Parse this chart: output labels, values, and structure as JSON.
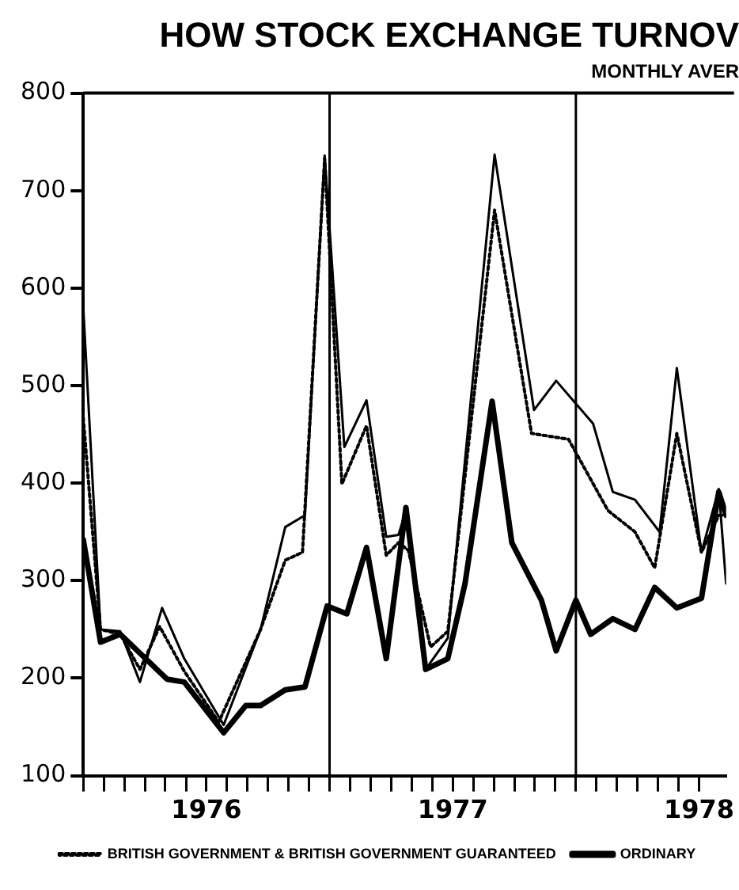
{
  "chart_data": {
    "type": "line",
    "title": "HOW STOCK EXCHANGE TURNOV",
    "subtitle": "MONTHLY AVER",
    "xlim": [
      1976,
      1978.61
    ],
    "ylim": [
      100,
      800
    ],
    "yticks": [
      100,
      200,
      300,
      400,
      500,
      600,
      700,
      800
    ],
    "xticks": [
      {
        "value": 1976,
        "label": null
      },
      {
        "value": 1976.083,
        "label": null
      },
      {
        "value": 1976.167,
        "label": null
      },
      {
        "value": 1976.25,
        "label": null
      },
      {
        "value": 1976.333,
        "label": null
      },
      {
        "value": 1976.417,
        "label": null
      },
      {
        "value": 1976.5,
        "label": "1976"
      },
      {
        "value": 1976.583,
        "label": null
      },
      {
        "value": 1976.667,
        "label": null
      },
      {
        "value": 1976.75,
        "label": null
      },
      {
        "value": 1976.833,
        "label": null
      },
      {
        "value": 1976.917,
        "label": null
      },
      {
        "value": 1977,
        "label": null
      },
      {
        "value": 1977.083,
        "label": null
      },
      {
        "value": 1977.167,
        "label": null
      },
      {
        "value": 1977.25,
        "label": null
      },
      {
        "value": 1977.333,
        "label": null
      },
      {
        "value": 1977.417,
        "label": null
      },
      {
        "value": 1977.5,
        "label": "1977"
      },
      {
        "value": 1977.583,
        "label": null
      },
      {
        "value": 1977.667,
        "label": null
      },
      {
        "value": 1977.75,
        "label": null
      },
      {
        "value": 1977.833,
        "label": null
      },
      {
        "value": 1977.917,
        "label": null
      },
      {
        "value": 1978,
        "label": null
      },
      {
        "value": 1978.083,
        "label": null
      },
      {
        "value": 1978.167,
        "label": null
      },
      {
        "value": 1978.25,
        "label": null
      },
      {
        "value": 1978.333,
        "label": null
      },
      {
        "value": 1978.417,
        "label": null
      },
      {
        "value": 1978.5,
        "label": "1978"
      }
    ],
    "grid": false,
    "legend": "bottom",
    "marker": "none",
    "ref_lines": [
      {
        "axis": "x",
        "value": 1977,
        "color": "#000000"
      },
      {
        "axis": "x",
        "value": 1978,
        "color": "#000000"
      }
    ],
    "series": [
      {
        "color": "#000000",
        "line_style": "solid",
        "x": [
          1976,
          1976.07,
          1976.15,
          1976.23,
          1976.32,
          1976.41,
          1976.57,
          1976.72,
          1976.82,
          1976.9,
          1976.98,
          1977.06,
          1977.15,
          1977.23,
          1977.28,
          1977.31,
          1977.39,
          1977.48,
          1977.67,
          1977.83,
          1977.92,
          1978.07,
          1978.15,
          1978.24,
          1978.34,
          1978.41,
          1978.51,
          1978.58,
          1978.61
        ],
        "values": [
          580,
          250,
          248,
          196,
          272,
          220,
          152,
          250,
          355,
          367,
          736,
          437,
          485,
          345,
          347,
          372,
          209,
          241,
          737,
          475,
          505,
          461,
          391,
          383,
          350,
          518,
          329,
          394,
          297
        ]
      },
      {
        "name": "BRITISH GOVERNMENT & BRITISH GOVERNMENT GUARANTEED",
        "color": "#000000",
        "line_style": "dotted",
        "x": [
          1976,
          1976.07,
          1976.15,
          1976.23,
          1976.31,
          1976.41,
          1976.55,
          1976.72,
          1976.82,
          1976.89,
          1976.98,
          1977.05,
          1977.15,
          1977.23,
          1977.28,
          1977.32,
          1977.41,
          1977.48,
          1977.67,
          1977.82,
          1977.97,
          1978.13,
          1978.24,
          1978.32,
          1978.41,
          1978.51,
          1978.58,
          1978.61
        ],
        "values": [
          467,
          250,
          245,
          209,
          253,
          207,
          155,
          250,
          321,
          329,
          733,
          399,
          459,
          326,
          339,
          331,
          232,
          248,
          680,
          451,
          445,
          372,
          350,
          313,
          451,
          329,
          367,
          367
        ]
      },
      {
        "name": "ORDINARY",
        "color": "#000000",
        "line_style": "solid",
        "x": [
          1976,
          1976.07,
          1976.15,
          1976.34,
          1976.41,
          1976.57,
          1976.66,
          1976.72,
          1976.82,
          1976.9,
          1976.99,
          1977.07,
          1977.15,
          1977.23,
          1977.31,
          1977.39,
          1977.48,
          1977.55,
          1977.66,
          1977.74,
          1977.86,
          1977.92,
          1978,
          1978.06,
          1978.15,
          1978.24,
          1978.32,
          1978.41,
          1978.51,
          1978.58,
          1978.61
        ],
        "values": [
          342,
          237,
          245,
          199,
          196,
          144,
          172,
          172,
          188,
          191,
          274,
          266,
          334,
          220,
          375,
          209,
          220,
          297,
          484,
          339,
          280,
          228,
          280,
          245,
          261,
          250,
          293,
          272,
          282,
          391,
          367
        ]
      }
    ]
  }
}
